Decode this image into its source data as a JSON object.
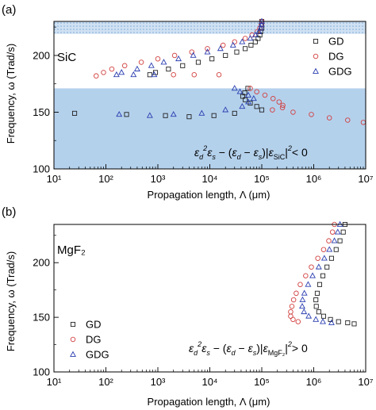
{
  "chart_data": [
    {
      "type": "scatter",
      "panel_label": "(a)",
      "material_label": "SiC",
      "xlabel": "Propagation length, Λ (μm)",
      "ylabel": "Frequency, ω (Trad/s)",
      "xscale": "log",
      "xlim": [
        10,
        10000000
      ],
      "ylim": [
        100,
        230
      ],
      "x_ticks": [
        10,
        100,
        1000,
        10000,
        100000,
        1000000,
        10000000
      ],
      "x_tick_labels": [
        "10¹",
        "10²",
        "10³",
        "10⁴",
        "10⁵",
        "10⁶",
        "10⁷"
      ],
      "y_ticks": [
        100,
        150,
        200
      ],
      "y_tick_labels": [
        "100",
        "150",
        "200"
      ],
      "legend_position": "top-right",
      "bands": [
        {
          "y0": 100,
          "y1": 171,
          "color": "#b4d1ec",
          "style": "solid"
        },
        {
          "y0": 219,
          "y1": 230,
          "color": "#b4d1ec",
          "style": "dotted"
        }
      ],
      "annotation": {
        "text": "ε_d²ε_s − (ε_d − ε_s)|ε_SiC|² < 0",
        "subscript": "SiC",
        "relation": "< 0"
      },
      "series": [
        {
          "name": "GD",
          "marker": "square",
          "color": "#222222",
          "points": [
            [
              100000,
              230
            ],
            [
              100000,
              227
            ],
            [
              100000,
              224
            ],
            [
              95000,
              221
            ],
            [
              92000,
              218
            ],
            [
              85000,
              215
            ],
            [
              75000,
              212
            ],
            [
              62000,
              209
            ],
            [
              48000,
              206
            ],
            [
              33000,
              203
            ],
            [
              20000,
              200
            ],
            [
              11000,
              197
            ],
            [
              6000,
              194
            ],
            [
              3000,
              191
            ],
            [
              1600,
              188
            ],
            [
              900,
              185
            ],
            [
              700,
              183
            ],
            [
              54000,
              171
            ],
            [
              47000,
              167
            ],
            [
              43000,
              164
            ],
            [
              48000,
              161
            ],
            [
              60000,
              158
            ],
            [
              80000,
              155
            ],
            [
              100000,
              152
            ],
            [
              30000,
              149
            ],
            [
              12000,
              147
            ],
            [
              4000,
              146
            ],
            [
              1400,
              147
            ],
            [
              250,
              148
            ],
            [
              25,
              149
            ]
          ]
        },
        {
          "name": "DG",
          "marker": "circle",
          "color": "#d24040",
          "points": [
            [
              100000,
              230
            ],
            [
              98000,
              227
            ],
            [
              92000,
              224
            ],
            [
              82000,
              221
            ],
            [
              65000,
              218
            ],
            [
              48000,
              215
            ],
            [
              30000,
              212
            ],
            [
              18000,
              209
            ],
            [
              9000,
              206
            ],
            [
              4500,
              203
            ],
            [
              2100,
              200
            ],
            [
              1000,
              197
            ],
            [
              480,
              194
            ],
            [
              230,
              191
            ],
            [
              130,
              188
            ],
            [
              90,
              185
            ],
            [
              65,
              182
            ],
            [
              2000,
              183
            ],
            [
              5000,
              183
            ],
            [
              15000,
              183
            ],
            [
              60000,
              171
            ],
            [
              80000,
              168
            ],
            [
              115000,
              165
            ],
            [
              165000,
              162
            ],
            [
              215000,
              159
            ],
            [
              255000,
              156
            ],
            [
              250000,
              154
            ],
            [
              160000,
              152
            ],
            [
              400000,
              150
            ],
            [
              900000,
              148
            ],
            [
              2000000,
              145
            ],
            [
              4500000,
              143
            ],
            [
              9000000,
              141
            ]
          ]
        },
        {
          "name": "GDG",
          "marker": "triangle",
          "color": "#2b3fb0",
          "points": [
            [
              100000,
              230
            ],
            [
              99000,
              227
            ],
            [
              95000,
              224
            ],
            [
              88000,
              221
            ],
            [
              75000,
              218
            ],
            [
              60000,
              215
            ],
            [
              42000,
              212
            ],
            [
              28000,
              209
            ],
            [
              16000,
              206
            ],
            [
              9000,
              203
            ],
            [
              4800,
              200
            ],
            [
              2500,
              197
            ],
            [
              1300,
              194
            ],
            [
              750,
              191
            ],
            [
              400,
              188
            ],
            [
              200,
              185
            ],
            [
              160,
              183
            ],
            [
              340,
              183
            ],
            [
              850,
              183
            ],
            [
              30000,
              171
            ],
            [
              38000,
              168
            ],
            [
              55000,
              165
            ],
            [
              70000,
              162
            ],
            [
              55000,
              159
            ],
            [
              42000,
              155
            ],
            [
              20000,
              152
            ],
            [
              7000,
              149
            ],
            [
              2000,
              148
            ],
            [
              700,
              147
            ],
            [
              180,
              148
            ]
          ]
        }
      ]
    },
    {
      "type": "scatter",
      "panel_label": "(b)",
      "material_label": "MgF₂",
      "xlabel": "Propagation length, Λ (μm)",
      "ylabel": "Frequency, ω (Trad/s)",
      "xscale": "log",
      "xlim": [
        10,
        10000000
      ],
      "ylim": [
        100,
        235
      ],
      "x_ticks": [
        10,
        100,
        1000,
        10000,
        100000,
        1000000,
        10000000
      ],
      "x_tick_labels": [
        "10¹",
        "10²",
        "10³",
        "10⁴",
        "10⁵",
        "10⁶",
        "10⁷"
      ],
      "y_ticks": [
        100,
        150,
        200
      ],
      "y_tick_labels": [
        "100",
        "150",
        "200"
      ],
      "legend_position": "bottom-left",
      "annotation": {
        "text": "ε_d²ε_s − (ε_d − ε_s)|ε_MgF2|² > 0",
        "subscript": "MgF₂",
        "relation": "> 0"
      },
      "series": [
        {
          "name": "GD",
          "marker": "square",
          "color": "#222222",
          "points": [
            [
              4000000,
              235
            ],
            [
              3700000,
              228
            ],
            [
              3200000,
              220
            ],
            [
              2700000,
              212
            ],
            [
              2200000,
              204
            ],
            [
              1800000,
              196
            ],
            [
              1500000,
              188
            ],
            [
              1300000,
              180
            ],
            [
              1170000,
              172
            ],
            [
              1100000,
              166
            ],
            [
              1120000,
              160
            ],
            [
              1250000,
              155
            ],
            [
              1550000,
              151
            ],
            [
              2100000,
              148
            ],
            [
              3000000,
              146
            ],
            [
              4500000,
              145
            ],
            [
              6000000,
              144
            ]
          ]
        },
        {
          "name": "DG",
          "marker": "circle",
          "color": "#d24040",
          "points": [
            [
              2500000,
              235
            ],
            [
              2300000,
              228
            ],
            [
              1950000,
              220
            ],
            [
              1550000,
              212
            ],
            [
              1200000,
              204
            ],
            [
              900000,
              196
            ],
            [
              700000,
              188
            ],
            [
              550000,
              180
            ],
            [
              460000,
              172
            ],
            [
              410000,
              166
            ],
            [
              380000,
              160
            ],
            [
              360000,
              155
            ],
            [
              360000,
              151
            ],
            [
              400000,
              148
            ],
            [
              500000,
              146
            ]
          ]
        },
        {
          "name": "GDG",
          "marker": "triangle",
          "color": "#2b3fb0",
          "points": [
            [
              3200000,
              235
            ],
            [
              2900000,
              228
            ],
            [
              2500000,
              220
            ],
            [
              2000000,
              212
            ],
            [
              1600000,
              204
            ],
            [
              1250000,
              196
            ],
            [
              950000,
              188
            ],
            [
              780000,
              180
            ],
            [
              660000,
              172
            ],
            [
              610000,
              166
            ],
            [
              600000,
              160
            ],
            [
              650000,
              155
            ],
            [
              800000,
              151
            ],
            [
              1100000,
              148
            ],
            [
              1500000,
              146
            ],
            [
              2200000,
              145
            ]
          ]
        }
      ]
    }
  ]
}
